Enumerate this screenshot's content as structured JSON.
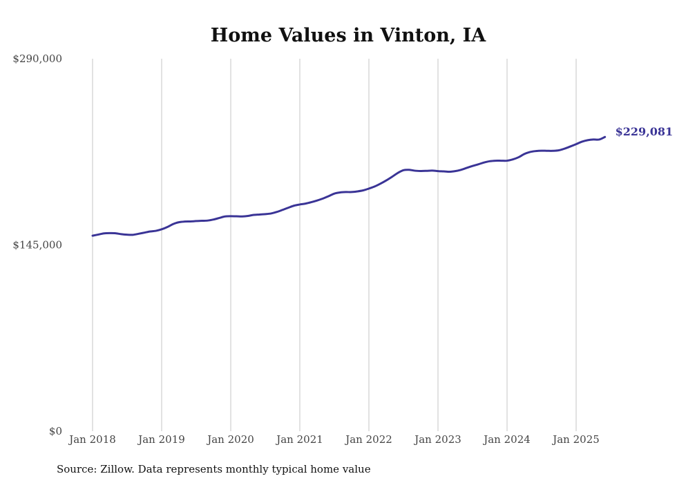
{
  "chart_data": {
    "type": "line",
    "title": "Home Values in Vinton, IA",
    "source_note": "Source: Zillow. Data represents monthly typical home value",
    "ylim": [
      0,
      290000
    ],
    "y_ticks": [
      {
        "value": 0,
        "label": "$0"
      },
      {
        "value": 145000,
        "label": "$145,000"
      },
      {
        "value": 290000,
        "label": "$290,000"
      }
    ],
    "x_ticks": [
      {
        "index": 0,
        "label": "Jan 2018"
      },
      {
        "index": 12,
        "label": "Jan 2019"
      },
      {
        "index": 24,
        "label": "Jan 2020"
      },
      {
        "index": 36,
        "label": "Jan 2021"
      },
      {
        "index": 48,
        "label": "Jan 2022"
      },
      {
        "index": 60,
        "label": "Jan 2023"
      },
      {
        "index": 72,
        "label": "Jan 2024"
      },
      {
        "index": 84,
        "label": "Jan 2025"
      }
    ],
    "grid": "vertical",
    "series": [
      {
        "name": "Typical home value",
        "color": "#3a3496",
        "end_label": "$229,081",
        "values": [
          152200,
          153100,
          154000,
          154200,
          154100,
          153400,
          153000,
          152900,
          153700,
          154600,
          155500,
          156000,
          157200,
          159000,
          161300,
          162700,
          163200,
          163300,
          163600,
          163800,
          164000,
          164800,
          166000,
          167200,
          167400,
          167300,
          167200,
          167600,
          168400,
          168700,
          169000,
          169500,
          170700,
          172300,
          174000,
          175600,
          176500,
          177200,
          178300,
          179600,
          181100,
          183000,
          185000,
          185900,
          186200,
          186200,
          186700,
          187500,
          188900,
          190500,
          192700,
          195200,
          198000,
          201000,
          203200,
          203500,
          202800,
          202600,
          202700,
          202900,
          202500,
          202300,
          202000,
          202500,
          203500,
          205000,
          206500,
          207800,
          209200,
          210200,
          210600,
          210600,
          210600,
          211600,
          213300,
          215800,
          217400,
          218100,
          218400,
          218300,
          218300,
          218700,
          220000,
          221700,
          223500,
          225400,
          226600,
          227100,
          227100,
          229081
        ]
      }
    ]
  }
}
